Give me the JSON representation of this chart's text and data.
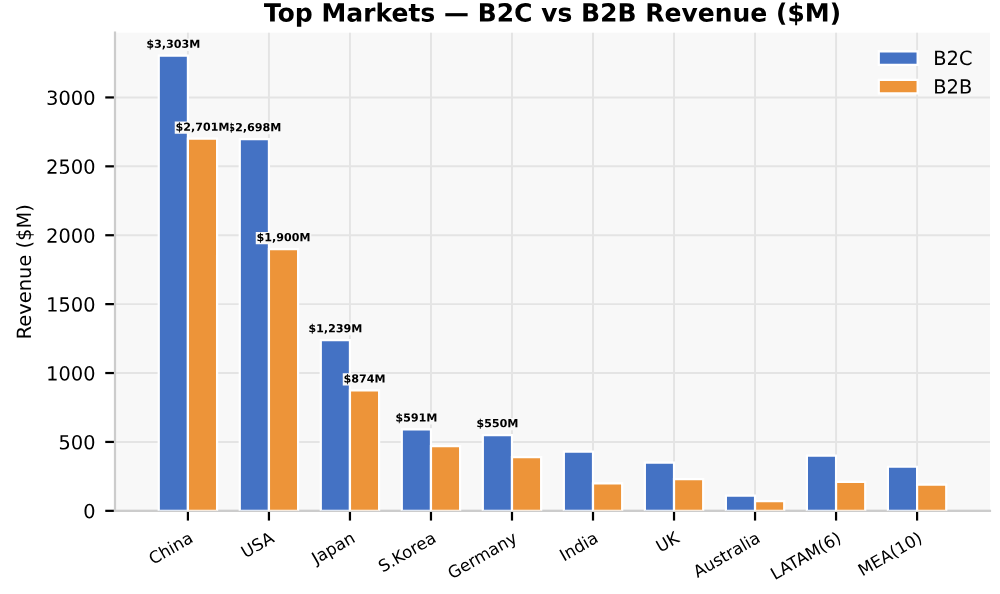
{
  "chart_data": {
    "type": "bar",
    "title": "Top Markets — B2C vs B2B Revenue ($M)",
    "ylabel": "Revenue ($M)",
    "categories": [
      "China",
      "USA",
      "Japan",
      "S.Korea",
      "Germany",
      "India",
      "UK",
      "Australia",
      "LATAM(6)",
      "MEA(10)"
    ],
    "series": [
      {
        "name": "B2C",
        "color": "#4472c4",
        "values": [
          3303,
          2698,
          1239,
          591,
          550,
          430,
          350,
          110,
          400,
          320
        ],
        "value_labels": [
          "$3,303M",
          "$2,698M",
          "$1,239M",
          "$591M",
          "$550M",
          null,
          null,
          null,
          null,
          null
        ]
      },
      {
        "name": "B2B",
        "color": "#ed9439",
        "values": [
          2701,
          1900,
          874,
          470,
          390,
          200,
          230,
          70,
          210,
          190
        ],
        "value_labels": [
          "$2,701M",
          "$1,900M",
          "$874M",
          null,
          null,
          null,
          null,
          null,
          null,
          null
        ]
      }
    ],
    "ylim": [
      0,
      3470
    ],
    "yticks": [
      0,
      500,
      1000,
      1500,
      2000,
      2500,
      3000
    ],
    "grid": true,
    "legend": "top right"
  }
}
